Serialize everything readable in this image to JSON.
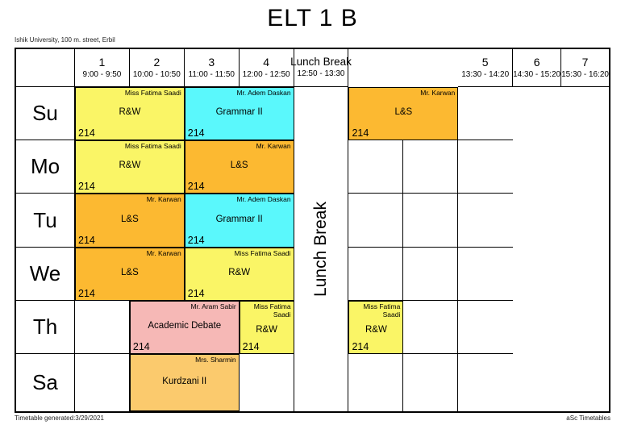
{
  "page": {
    "title": "ELT 1 B",
    "subtitle": "Ishik University, 100 m. street, Erbil",
    "footer_left": "Timetable generated:3/29/2021",
    "footer_right": "aSc Timetables"
  },
  "colors": {
    "yellow": "#FAF566",
    "cyan": "#5AF8FC",
    "orange": "#FCB931",
    "pink": "#F6B8B6",
    "peach": "#FBCA6D",
    "border": "#000000"
  },
  "timetable": {
    "days": [
      "Su",
      "Mo",
      "Tu",
      "We",
      "Th",
      "Sa"
    ],
    "periods": [
      {
        "num": "1",
        "time": "9:00 - 9:50"
      },
      {
        "num": "2",
        "time": "10:00 - 10:50"
      },
      {
        "num": "3",
        "time": "11:00 - 11:50"
      },
      {
        "num": "4",
        "time": "12:00 - 12:50"
      },
      {
        "num": "5",
        "time": "13:30 - 14:20"
      },
      {
        "num": "6",
        "time": "14:30 - 15:20"
      },
      {
        "num": "7",
        "time": "15:30 - 16:20"
      }
    ],
    "lunch": {
      "label": "Lunch Break",
      "time": "12:50 - 13:30"
    },
    "lessons": [
      {
        "day": 0,
        "period": 1,
        "span": 2,
        "teacher": "Miss Fatima Saadi",
        "subject": "R&W",
        "room": "214",
        "color": "yellow"
      },
      {
        "day": 0,
        "period": 3,
        "span": 2,
        "teacher": "Mr. Adem Daskan",
        "subject": "Grammar II",
        "room": "214",
        "color": "cyan"
      },
      {
        "day": 0,
        "period": 5,
        "span": 2,
        "teacher": "Mr. Karwan",
        "subject": "L&S",
        "room": "214",
        "color": "orange"
      },
      {
        "day": 1,
        "period": 1,
        "span": 2,
        "teacher": "Miss Fatima Saadi",
        "subject": "R&W",
        "room": "214",
        "color": "yellow"
      },
      {
        "day": 1,
        "period": 3,
        "span": 2,
        "teacher": "Mr. Karwan",
        "subject": "L&S",
        "room": "214",
        "color": "orange"
      },
      {
        "day": 2,
        "period": 1,
        "span": 2,
        "teacher": "Mr. Karwan",
        "subject": "L&S",
        "room": "214",
        "color": "orange"
      },
      {
        "day": 2,
        "period": 3,
        "span": 2,
        "teacher": "Mr. Adem Daskan",
        "subject": "Grammar II",
        "room": "214",
        "color": "cyan"
      },
      {
        "day": 3,
        "period": 1,
        "span": 2,
        "teacher": "Mr. Karwan",
        "subject": "L&S",
        "room": "214",
        "color": "orange"
      },
      {
        "day": 3,
        "period": 3,
        "span": 2,
        "teacher": "Miss Fatima Saadi",
        "subject": "R&W",
        "room": "214",
        "color": "yellow"
      },
      {
        "day": 4,
        "period": 2,
        "span": 2,
        "teacher": "Mr. Aram Sabir",
        "subject": "Academic Debate",
        "room": "214",
        "color": "pink"
      },
      {
        "day": 4,
        "period": 4,
        "span": 1,
        "teacher": "Miss Fatima Saadi",
        "subject": "R&W",
        "room": "214",
        "color": "yellow"
      },
      {
        "day": 4,
        "period": 5,
        "span": 1,
        "teacher": "Miss Fatima Saadi",
        "subject": "R&W",
        "room": "214",
        "color": "yellow"
      },
      {
        "day": 5,
        "period": 2,
        "span": 2,
        "teacher": "Mrs. Sharmin",
        "subject": "Kurdzani II",
        "room": "",
        "color": "peach"
      }
    ]
  }
}
